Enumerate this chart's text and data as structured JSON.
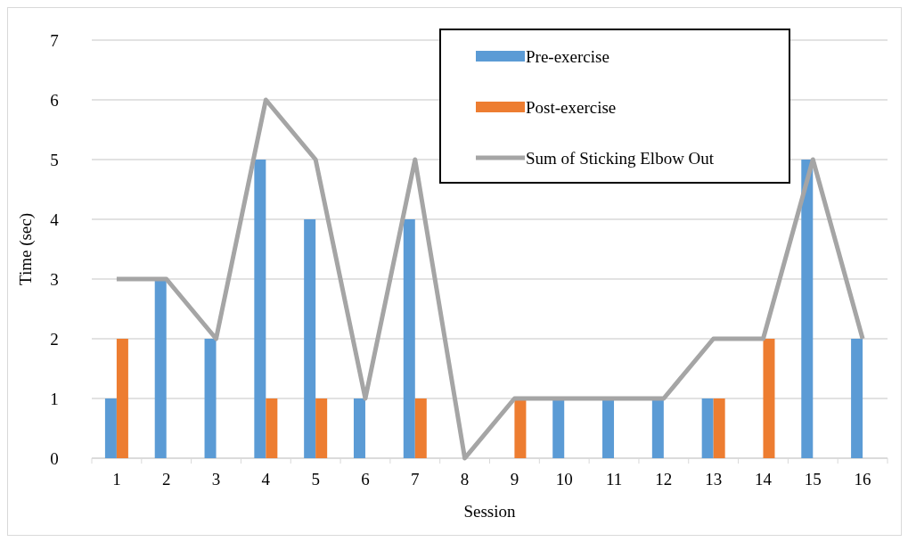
{
  "chart_data": {
    "type": "bar",
    "xlabel": "Session",
    "ylabel": "Time (sec)",
    "categories": [
      "1",
      "2",
      "3",
      "4",
      "5",
      "6",
      "7",
      "8",
      "9",
      "10",
      "11",
      "12",
      "13",
      "14",
      "15",
      "16"
    ],
    "series": [
      {
        "name": "Pre-exercise",
        "color": "#5b9bd5",
        "values": [
          1,
          3,
          2,
          5,
          4,
          1,
          4,
          0,
          0,
          1,
          1,
          1,
          1,
          0,
          5,
          2
        ]
      },
      {
        "name": "Post-exercise",
        "color": "#ed7d31",
        "values": [
          2,
          0,
          0,
          1,
          1,
          0,
          1,
          0,
          1,
          0,
          0,
          0,
          1,
          2,
          0,
          0
        ]
      },
      {
        "name": "Sum of Sticking Elbow Out",
        "type": "line",
        "color": "#a5a5a5",
        "values": [
          3,
          3,
          2,
          6,
          5,
          1,
          5,
          0,
          1,
          1,
          1,
          1,
          2,
          2,
          5,
          2
        ]
      }
    ],
    "ylim": [
      0,
      7
    ],
    "yticks": [
      0,
      1,
      2,
      3,
      4,
      5,
      6,
      7
    ],
    "grid": "y",
    "legend": "top right"
  }
}
